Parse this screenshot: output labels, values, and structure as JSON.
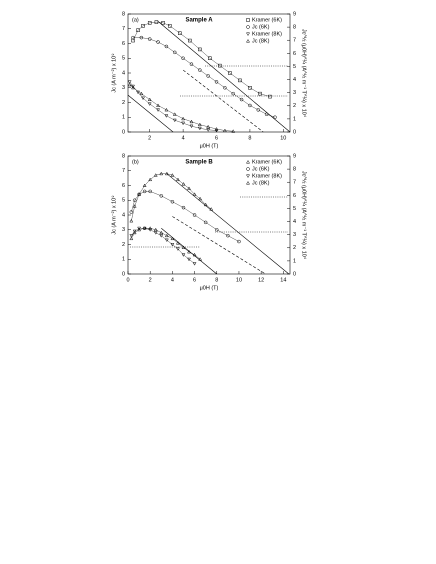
{
  "chart_data": [
    {
      "type": "scatter",
      "panel": "(a)",
      "title": "Sample A",
      "x_label": "μ0H (T)",
      "y_label": "Jc (A m⁻²) x 10⁹",
      "y2_label": "Jc^½ (μ0H)^¼ (A^½ m⁻¹ T^¼) x 10⁴",
      "xlim": [
        0.7,
        10.4
      ],
      "xticks": [
        2,
        4,
        6,
        8,
        10
      ],
      "ylim": [
        0,
        8
      ],
      "yticks": [
        0,
        1,
        2,
        3,
        4,
        5,
        6,
        7,
        8
      ],
      "y2lim": [
        0,
        9
      ],
      "y2ticks": [
        0,
        1,
        2,
        3,
        4,
        5,
        6,
        7,
        8,
        9
      ],
      "series": [
        {
          "name": "Kramer (6K)",
          "color": "#000000",
          "marker": "square",
          "x": [
            1,
            1.3,
            1.6,
            2,
            2.4,
            2.8,
            3.2,
            3.8,
            4.4,
            5,
            5.6,
            6.2,
            6.8,
            7.4,
            8,
            8.6,
            9.2
          ],
          "values": [
            6.2,
            6.9,
            7.2,
            7.4,
            7.45,
            7.4,
            7.2,
            6.7,
            6.2,
            5.6,
            5.0,
            4.5,
            4.0,
            3.5,
            3.0,
            2.6,
            2.4
          ]
        },
        {
          "name": "Jc (6K)",
          "color": "#000000",
          "marker": "circle",
          "x": [
            1,
            1.5,
            2,
            2.5,
            3,
            3.5,
            4,
            4.5,
            5,
            5.5,
            6,
            6.5,
            7,
            7.5,
            8,
            8.5,
            9,
            9.5
          ],
          "values": [
            6.4,
            6.4,
            6.3,
            6.1,
            5.8,
            5.4,
            5.0,
            4.6,
            4.2,
            3.8,
            3.4,
            3.0,
            2.6,
            2.2,
            1.8,
            1.5,
            1.2,
            1.0
          ]
        },
        {
          "name": "Kramer (8K)",
          "color": "#000000",
          "marker": "triangle-down",
          "x": [
            0.8,
            1,
            1.3,
            1.6,
            2,
            2.5,
            3,
            3.5,
            4,
            4.5,
            5,
            5.5,
            6
          ],
          "values": [
            3.4,
            3.1,
            2.7,
            2.3,
            1.9,
            1.5,
            1.1,
            0.8,
            0.6,
            0.4,
            0.25,
            0.15,
            0.1
          ]
        },
        {
          "name": "Jc (8K)",
          "color": "#000000",
          "marker": "triangle-up",
          "x": [
            0.8,
            1,
            1.5,
            2,
            2.5,
            3,
            3.5,
            4,
            4.5,
            5,
            5.5,
            6,
            6.5,
            7
          ],
          "values": [
            3.2,
            3.0,
            2.6,
            2.2,
            1.8,
            1.5,
            1.2,
            0.9,
            0.7,
            0.5,
            0.35,
            0.2,
            0.1,
            0.05
          ]
        }
      ],
      "fits": [
        {
          "style": "solid",
          "x": [
            2.5,
            10.4
          ],
          "values": [
            7.5,
            0
          ]
        },
        {
          "style": "dashed",
          "x": [
            4,
            8.8
          ],
          "values": [
            4.2,
            0
          ]
        },
        {
          "style": "solid",
          "x": [
            0.7,
            3.4
          ],
          "values": [
            2.5,
            0
          ]
        }
      ]
    },
    {
      "type": "scatter",
      "panel": "(b)",
      "title": "Sample B",
      "x_label": "μ0H (T)",
      "y_label": "Jc (A m⁻²) x 10⁹",
      "y2_label": "Jc^½ (μ0H)^¼ (A^½ m⁻¹ T^¼) x 10⁴",
      "xlim": [
        0,
        14.6
      ],
      "xticks": [
        0,
        2,
        4,
        6,
        8,
        10,
        12,
        14
      ],
      "ylim": [
        0,
        8
      ],
      "yticks": [
        0,
        1,
        2,
        3,
        4,
        5,
        6,
        7,
        8
      ],
      "y2lim": [
        0,
        9
      ],
      "y2ticks": [
        0,
        1,
        2,
        3,
        4,
        5,
        6,
        7,
        8,
        9
      ],
      "series": [
        {
          "name": "Kramer (6K)",
          "color": "#000000",
          "marker": "triangle-up",
          "x": [
            0.3,
            0.6,
            1,
            1.5,
            2,
            2.5,
            3,
            3.5,
            4,
            4.5,
            5,
            5.5,
            6,
            6.5,
            7,
            7.5
          ],
          "values": [
            3.6,
            4.6,
            5.4,
            6.0,
            6.4,
            6.7,
            6.8,
            6.8,
            6.7,
            6.4,
            6.1,
            5.8,
            5.4,
            5.1,
            4.7,
            4.4
          ]
        },
        {
          "name": "Jc (6K)",
          "color": "#000000",
          "marker": "circle",
          "x": [
            0.3,
            0.6,
            1,
            1.5,
            2,
            3,
            4,
            5,
            6,
            7,
            8,
            9,
            10
          ],
          "values": [
            4.2,
            5.0,
            5.4,
            5.6,
            5.6,
            5.3,
            4.9,
            4.5,
            4.0,
            3.5,
            3.0,
            2.6,
            2.2
          ]
        },
        {
          "name": "Kramer (8K)",
          "color": "#000000",
          "marker": "triangle-down",
          "x": [
            0.3,
            0.6,
            1,
            1.5,
            2,
            2.5,
            3,
            3.5,
            4,
            4.5,
            5,
            5.5,
            6
          ],
          "values": [
            2.6,
            2.9,
            3.1,
            3.1,
            3.0,
            2.8,
            2.6,
            2.3,
            2.0,
            1.7,
            1.3,
            1.0,
            0.7
          ]
        },
        {
          "name": "Jc (8K)",
          "color": "#000000",
          "marker": "triangle-up",
          "x": [
            0.3,
            0.6,
            1,
            1.5,
            2,
            2.5,
            3,
            3.5,
            4,
            4.5,
            5,
            5.5,
            6,
            6.5
          ],
          "values": [
            2.4,
            2.8,
            3.0,
            3.1,
            3.1,
            3.0,
            2.8,
            2.6,
            2.4,
            2.1,
            1.8,
            1.5,
            1.3,
            1.0
          ]
        }
      ],
      "fits": [
        {
          "style": "solid",
          "x": [
            3.5,
            14.5
          ],
          "values": [
            6.8,
            0
          ]
        },
        {
          "style": "dashed",
          "x": [
            4,
            12.4
          ],
          "values": [
            3.9,
            0
          ]
        },
        {
          "style": "solid",
          "x": [
            3,
            8
          ],
          "values": [
            3.1,
            0
          ]
        }
      ]
    }
  ]
}
